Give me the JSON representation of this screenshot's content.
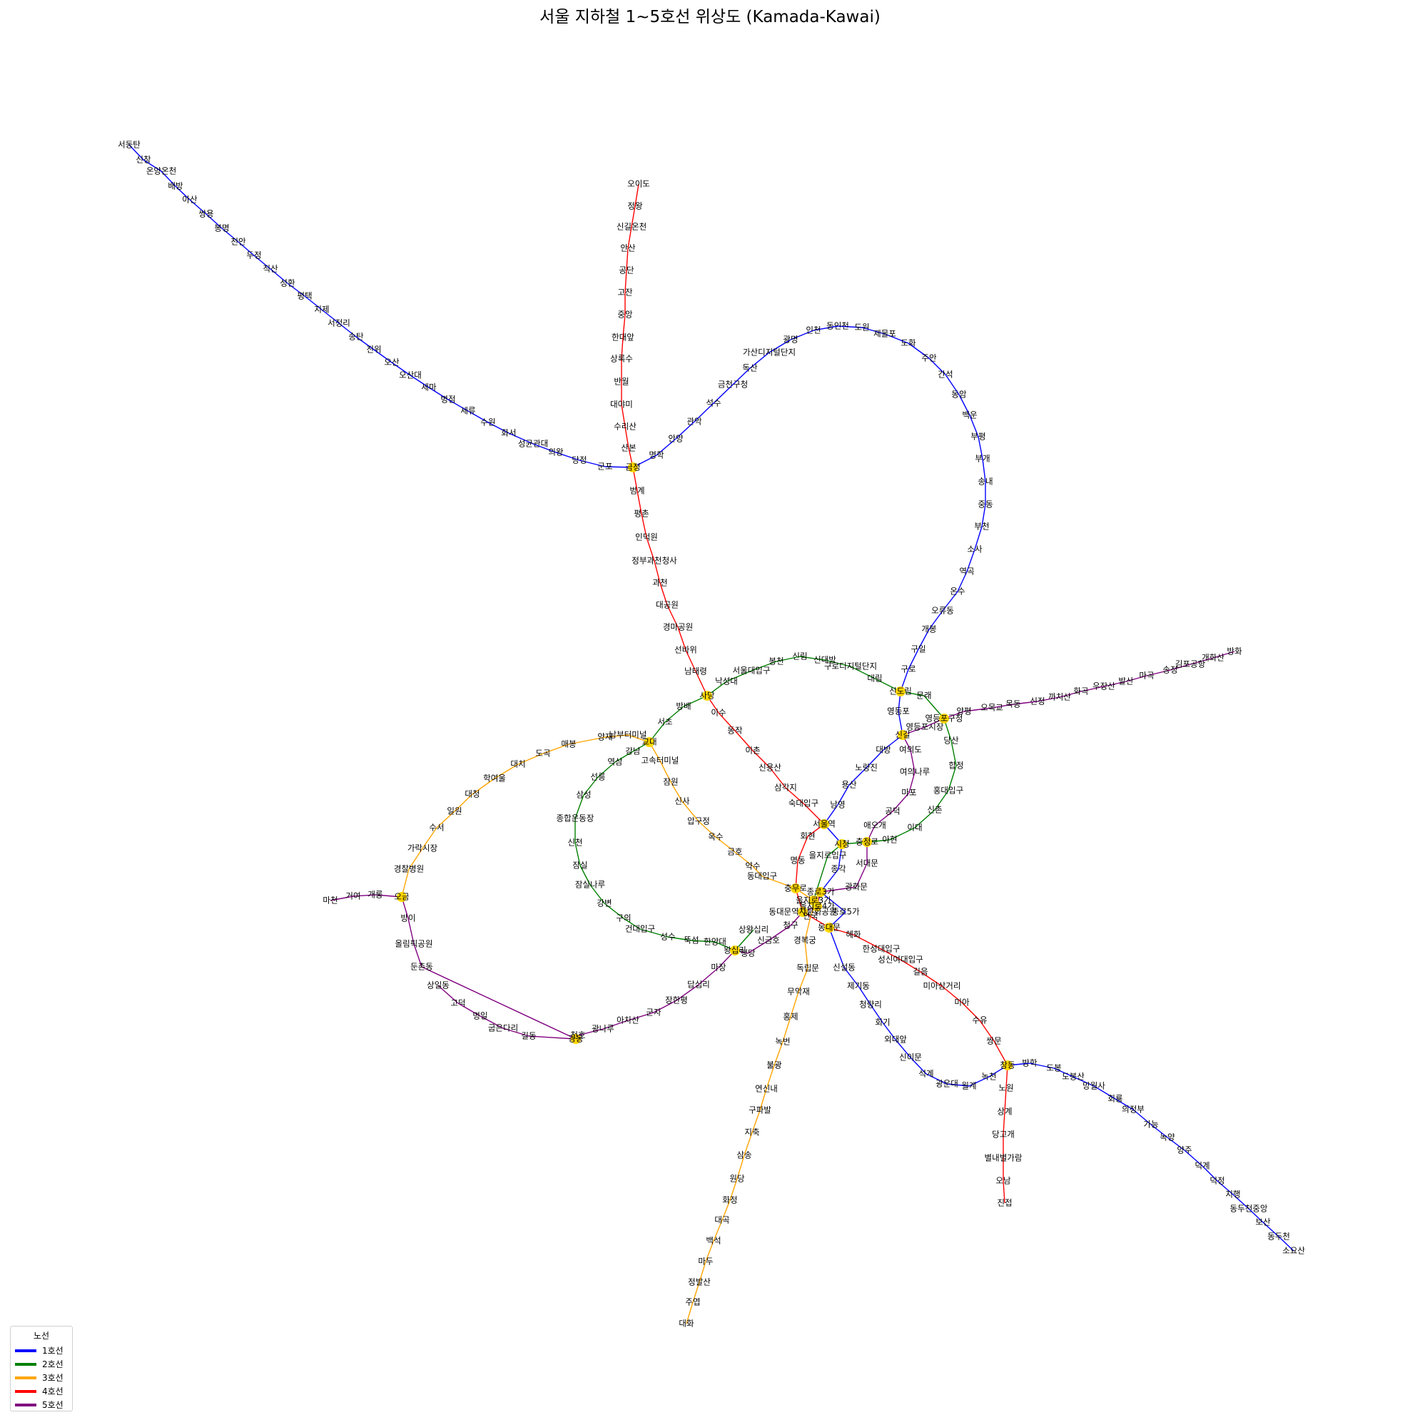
{
  "title": "서울 지하철 1~5호선 위상도 (Kamada-Kawai)",
  "legend": {
    "title": "노선",
    "items": [
      {
        "label": "1호선",
        "color": "#0000ff"
      },
      {
        "label": "2호선",
        "color": "#008000"
      },
      {
        "label": "3호선",
        "color": "#ffa500"
      },
      {
        "label": "4호선",
        "color": "#ff0000"
      },
      {
        "label": "5호선",
        "color": "#800080"
      }
    ]
  },
  "transfer_color": "#ffd700",
  "lines": {
    "1": [
      "서동탄",
      "신창",
      "온양온천",
      "배방",
      "아산",
      "쌍용",
      "봉명",
      "천안",
      "두정",
      "직산",
      "성환",
      "평택",
      "지제",
      "서정리",
      "송탄",
      "진위",
      "오산",
      "오산대",
      "세마",
      "병점",
      "세류",
      "수원",
      "화서",
      "성균관대",
      "의왕",
      "당정",
      "군포",
      "금정",
      "명학",
      "안양",
      "관악",
      "석수",
      "금천구청",
      "독산",
      "가산디지털단지",
      "광명",
      "인천",
      "동인천",
      "도원",
      "제물포",
      "도화",
      "주안",
      "간석",
      "동암",
      "백운",
      "부평",
      "부개",
      "송내",
      "중동",
      "부천",
      "소사",
      "역곡",
      "온수",
      "오류동",
      "개봉",
      "구일",
      "구로",
      "신도림",
      "영등포",
      "신길",
      "대방",
      "노량진",
      "용산",
      "남영",
      "서울역",
      "시청",
      "종각",
      "종로3가",
      "종로5가",
      "동대문",
      "신설동",
      "제기동",
      "청량리",
      "회기",
      "외대앞",
      "신이문",
      "석계",
      "광운대",
      "월계",
      "녹천",
      "창동",
      "방학",
      "도봉",
      "도봉산",
      "망월사",
      "회룡",
      "의정부",
      "가능",
      "녹양",
      "양주",
      "덕계",
      "덕정",
      "지행",
      "동두천중앙",
      "보산",
      "동두천",
      "소요산"
    ],
    "2": [
      "시청",
      "을지로입구",
      "을지로3가",
      "을지로4가",
      "동대문역사문화공원",
      "신당",
      "상왕십리",
      "왕십리",
      "한양대",
      "뚝섬",
      "성수",
      "건대입구",
      "구의",
      "강변",
      "잠실나루",
      "잠실",
      "신천",
      "종합운동장",
      "삼성",
      "선릉",
      "역삼",
      "강남",
      "교대",
      "서초",
      "방배",
      "사당",
      "낙성대",
      "서울대입구",
      "봉천",
      "신림",
      "신대방",
      "구로디지털단지",
      "대림",
      "신도림",
      "문래",
      "영등포구청",
      "당산",
      "합정",
      "홍대입구",
      "신촌",
      "이대",
      "아현",
      "충정로",
      "시청"
    ],
    "3": [
      "대화",
      "주엽",
      "정발산",
      "마두",
      "백석",
      "대곡",
      "화정",
      "원당",
      "삼송",
      "지축",
      "구파발",
      "연신내",
      "불광",
      "녹번",
      "홍제",
      "무악재",
      "독립문",
      "경복궁",
      "안국",
      "종로3가",
      "을지로3가",
      "충무로",
      "동대입구",
      "약수",
      "금호",
      "옥수",
      "압구정",
      "신사",
      "잠원",
      "고속터미널",
      "교대",
      "남부터미널",
      "양재",
      "매봉",
      "도곡",
      "대치",
      "학여울",
      "대청",
      "일원",
      "수서",
      "가락시장",
      "경찰병원",
      "오금"
    ],
    "4": [
      "오이도",
      "정왕",
      "신길온천",
      "안산",
      "공단",
      "고잔",
      "중앙",
      "한대앞",
      "상록수",
      "반월",
      "대야미",
      "수리산",
      "산본",
      "금정",
      "범계",
      "평촌",
      "인덕원",
      "정부과천청사",
      "과천",
      "대공원",
      "경마공원",
      "선바위",
      "남태령",
      "사당",
      "이수",
      "동작",
      "이촌",
      "신용산",
      "삼각지",
      "숙대입구",
      "서울역",
      "회현",
      "명동",
      "충무로",
      "동대문역사문화공원",
      "동대문",
      "혜화",
      "한성대입구",
      "성신여대입구",
      "길음",
      "미아삼거리",
      "미아",
      "수유",
      "쌍문",
      "창동",
      "노원",
      "상계",
      "당고개",
      "별내별가람",
      "오남",
      "진접"
    ],
    "5a": [
      "방화",
      "개화산",
      "김포공항",
      "송정",
      "마곡",
      "발산",
      "우장산",
      "화곡",
      "까치산",
      "신정",
      "목동",
      "오목교",
      "양평",
      "영등포구청",
      "영등포시장",
      "신길",
      "여의도",
      "여의나루",
      "마포",
      "공덕",
      "애오개",
      "충정로",
      "서대문",
      "광화문",
      "종로3가",
      "을지로4가",
      "동대문역사문화공원",
      "청구",
      "신금호",
      "행당",
      "왕십리",
      "마장",
      "답십리",
      "장한평",
      "군자",
      "아차산",
      "광나루",
      "천호",
      "강동",
      "길동",
      "굽은다리",
      "명일",
      "고덕",
      "상일동"
    ],
    "5b": [
      "강동",
      "둔촌동",
      "올림픽공원",
      "방이",
      "오금",
      "개롱",
      "거여",
      "마천"
    ]
  }
}
